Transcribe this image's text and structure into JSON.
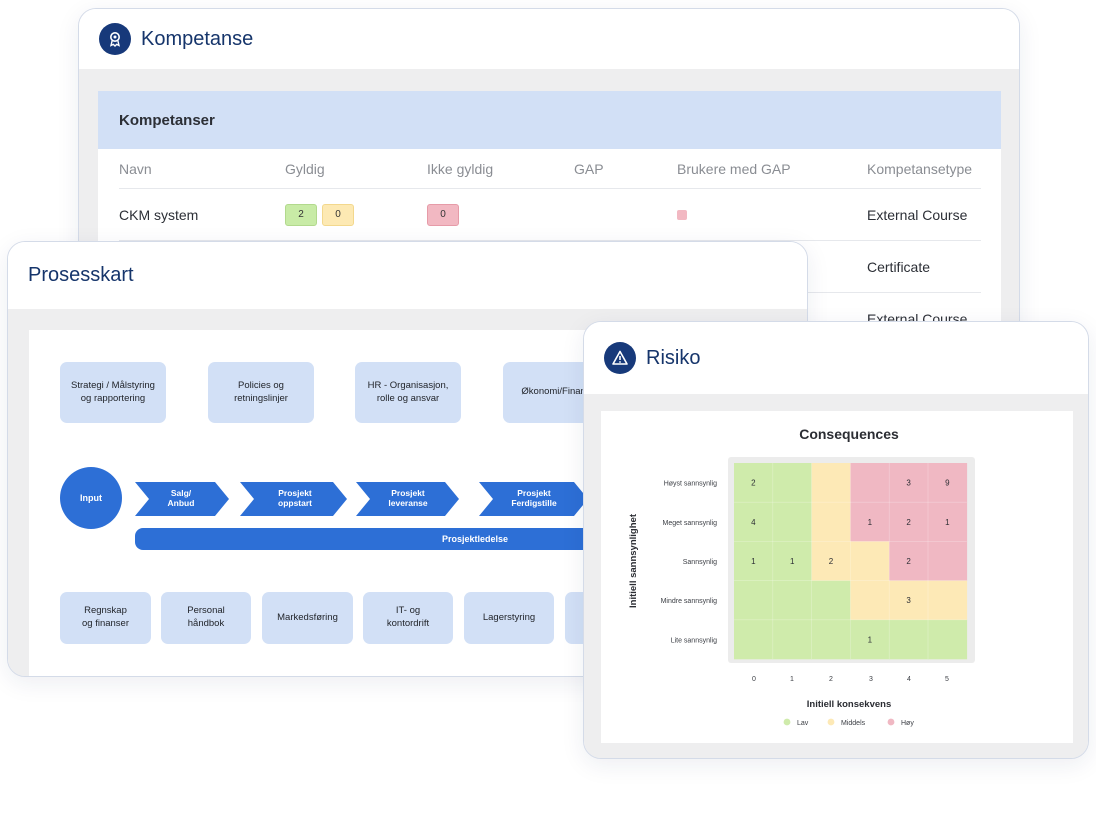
{
  "kompetanse": {
    "title": "Kompetanse",
    "section_title": "Kompetanser",
    "columns": [
      "Navn",
      "Gyldig",
      "Ikke gyldig",
      "GAP",
      "Brukere med GAP",
      "Kompetansetype"
    ],
    "rows": [
      {
        "name": "CKM system",
        "gyldig": [
          "2",
          "0"
        ],
        "ikke_gyldig": "0",
        "gap": "",
        "has_gap_users": true,
        "type": "External Course"
      },
      {
        "name": "",
        "type": "Certificate"
      },
      {
        "name": "",
        "type": "External Course"
      }
    ]
  },
  "prosesskart": {
    "title": "Prosesskart",
    "top_boxes": [
      "Strategi / Målstyring\nog rapportering",
      "Policies og\nretningslinjer",
      "HR - Organisasjon,\nrolle og ansvar",
      "Økonomi/Finans"
    ],
    "input_label": "Input",
    "chevrons": [
      "Salg/\nAnbud",
      "Prosjekt\noppstart",
      "Prosjekt\nleveranse",
      "Prosjekt\nFerdigstille"
    ],
    "bar_label": "Prosjektledelse",
    "bottom_boxes": [
      "Regnskap\nog finanser",
      "Personal\nhåndbok",
      "Markedsføring",
      "IT- og\nkontordrift",
      "Lagerstyring",
      ""
    ]
  },
  "risiko": {
    "title": "Risiko",
    "colors": {
      "lav": "#cfebab",
      "middels": "#fde9b6",
      "hoy": "#f0b8c3"
    },
    "chart_data": {
      "type": "heatmap",
      "title": "Consequences",
      "xlabel": "Initiell konsekvens",
      "ylabel": "Initiell sannsynlighet",
      "x_categories": [
        "0",
        "1",
        "2",
        "3",
        "4",
        "5"
      ],
      "y_categories": [
        "Høyst sannsynlig",
        "Meget sannsynlig",
        "Sannsynlig",
        "Mindre sannsynlig",
        "Lite sannsynlig"
      ],
      "levels": [
        [
          "lav",
          "lav",
          "middels",
          "hoy",
          "hoy",
          "hoy"
        ],
        [
          "lav",
          "lav",
          "middels",
          "hoy",
          "hoy",
          "hoy"
        ],
        [
          "lav",
          "lav",
          "middels",
          "middels",
          "hoy",
          "hoy"
        ],
        [
          "lav",
          "lav",
          "lav",
          "middels",
          "middels",
          "middels"
        ],
        [
          "lav",
          "lav",
          "lav",
          "lav",
          "lav",
          "lav"
        ]
      ],
      "values": [
        [
          "2",
          "",
          "",
          "",
          "3",
          "9"
        ],
        [
          "4",
          "",
          "",
          "1",
          "2",
          "1"
        ],
        [
          "1",
          "1",
          "2",
          "",
          "2",
          ""
        ],
        [
          "",
          "",
          "",
          "",
          "3",
          ""
        ],
        [
          "",
          "",
          "",
          "1",
          "",
          ""
        ]
      ],
      "legend": [
        {
          "key": "lav",
          "label": "Lav"
        },
        {
          "key": "middels",
          "label": "Middels"
        },
        {
          "key": "hoy",
          "label": "Høy"
        }
      ],
      "legend_position": "bottom"
    }
  }
}
